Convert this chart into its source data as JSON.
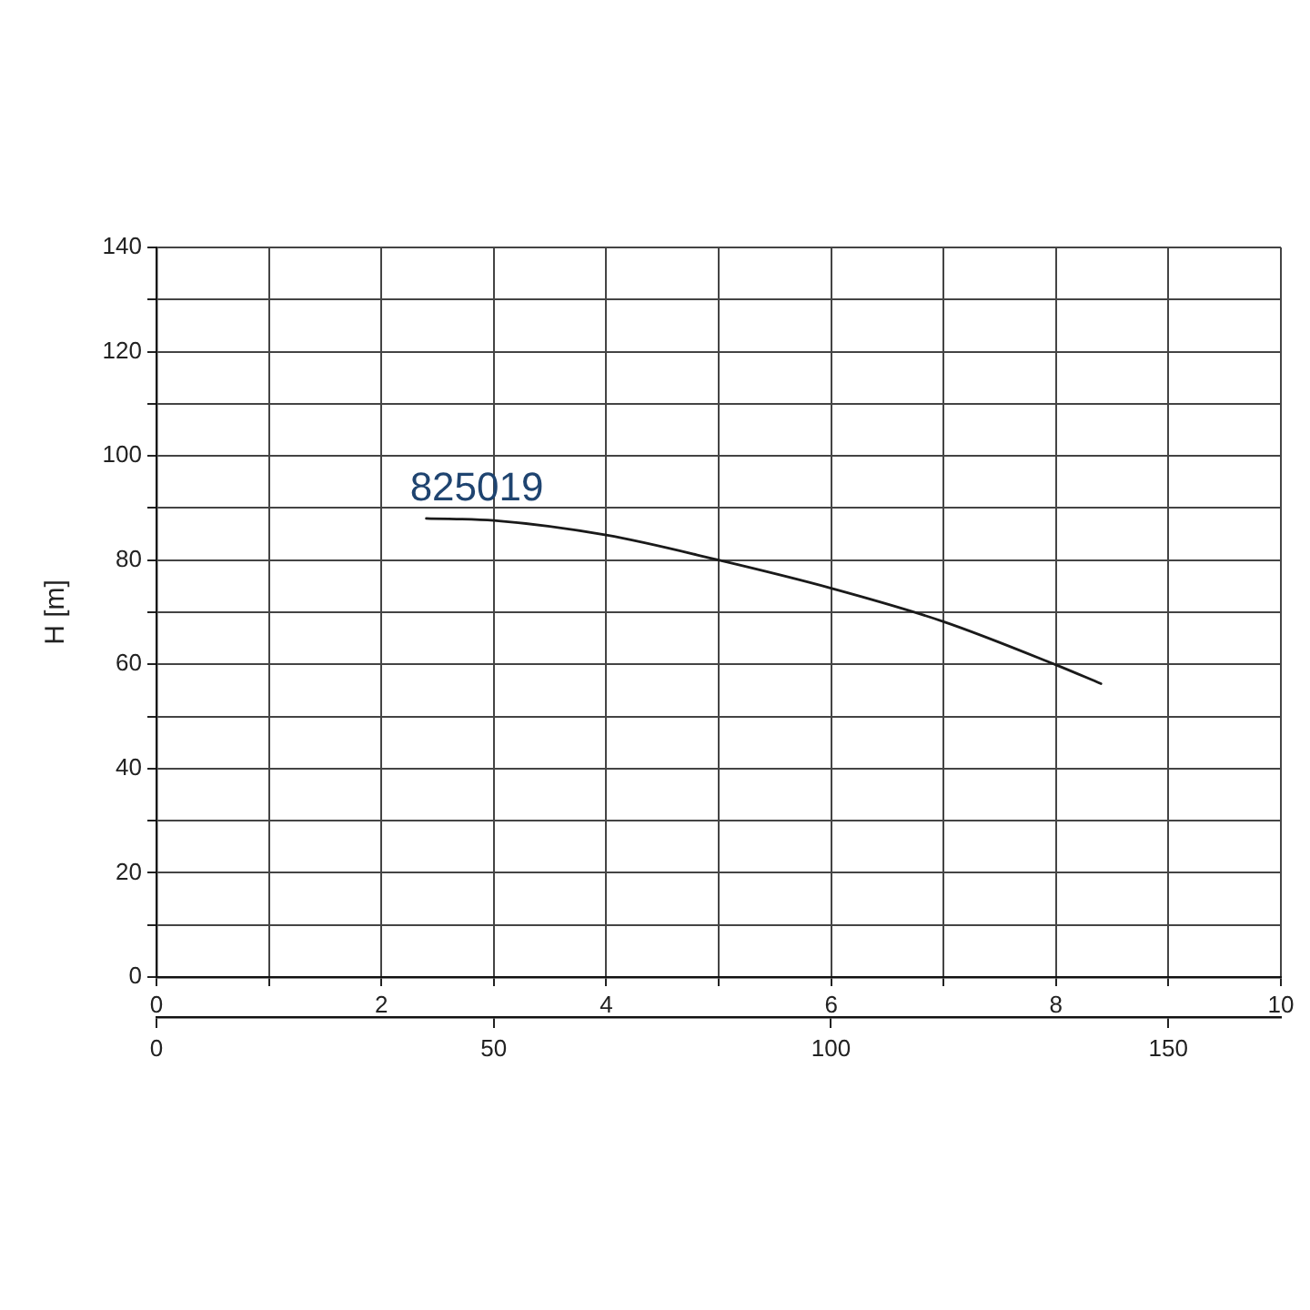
{
  "chart_data": {
    "type": "line",
    "ylabel": "H [m]",
    "x": [
      2.4,
      3,
      4,
      5,
      6,
      7,
      8,
      8.4
    ],
    "series": [
      {
        "name": "825019",
        "color": "#1a1a1a",
        "values": [
          88.0,
          87.6,
          84.8,
          80.0,
          74.6,
          68.2,
          59.9,
          56.3
        ]
      }
    ],
    "xlim": [
      0,
      10
    ],
    "xticks": [
      0,
      {
        "value": 1,
        "label": null
      },
      2,
      {
        "value": 3,
        "label": null
      },
      4,
      {
        "value": 5,
        "label": null
      },
      6,
      {
        "value": 7,
        "label": null
      },
      8,
      {
        "value": 9,
        "label": null
      },
      10
    ],
    "x2lim": [
      0,
      166.7
    ],
    "x2ticks": [
      0,
      50,
      100,
      150
    ],
    "ylim": [
      0,
      140
    ],
    "yticks": [
      0,
      {
        "value": 10,
        "label": null
      },
      20,
      {
        "value": 30,
        "label": null
      },
      40,
      {
        "value": 50,
        "label": null
      },
      60,
      {
        "value": 70,
        "label": null
      },
      80,
      {
        "value": 90,
        "label": null
      },
      100,
      {
        "value": 110,
        "label": null
      },
      120,
      {
        "value": 130,
        "label": null
      },
      140
    ],
    "grid": true,
    "marker": "none",
    "line_style": "solid",
    "legend": false
  }
}
